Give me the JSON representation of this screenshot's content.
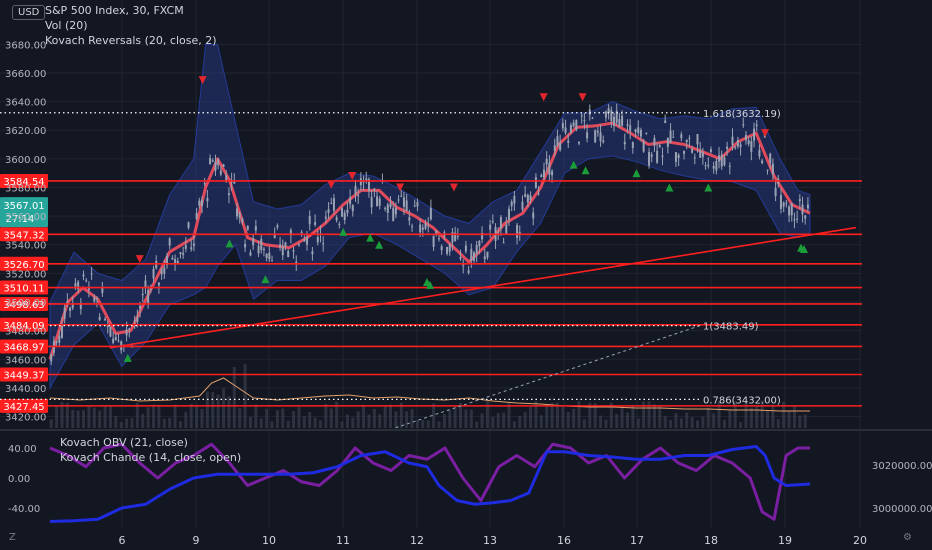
{
  "symbol_line": "S&P 500 Index, 30, FXCM",
  "indicators": {
    "vol": "Vol (20)",
    "reversals": "Kovach Reversals (20, close, 2)",
    "obv": "Kovach OBV (21, close)",
    "chande": "Kovach Chande (14, close, open)"
  },
  "currency": "USD",
  "icons": {
    "z": "Z",
    "gear": "gear-icon"
  },
  "colors": {
    "background": "#131722",
    "grid": "#1f2430",
    "level_line": "#ff1f1f",
    "price_tag": "#ff1f1f",
    "current_price_tag": "#26a69a",
    "candle": "#9aa3b3",
    "bollinger": "#2a3d8f",
    "ma": "#e04a5a",
    "volume_avg": "#e2a06a",
    "obv": "#1e2be0",
    "chande": "#7b1fa2",
    "up_arrow": "#1b9e3a",
    "down_arrow": "#e3262e"
  },
  "chart_data": {
    "type": "candlestick",
    "price_axis_ticks": [
      "3680.00",
      "3660.00",
      "3640.00",
      "3620.00",
      "3600.00",
      "3580.00",
      "3560.00",
      "3540.00",
      "3520.00",
      "3500.00",
      "3480.00",
      "3460.00",
      "3440.00",
      "3420.00"
    ],
    "price_range": [
      3412,
      3690
    ],
    "x_ticks": [
      "6",
      "9",
      "10",
      "11",
      "12",
      "13",
      "16",
      "17",
      "18",
      "19",
      "20"
    ],
    "levels": [
      {
        "price": 3584.54,
        "label": "3584.54"
      },
      {
        "price": 3547.32,
        "label": "3547.32"
      },
      {
        "price": 3526.7,
        "label": "3526.70"
      },
      {
        "price": 3510.11,
        "label": "3510.11"
      },
      {
        "price": 3498.63,
        "label": "3498.63"
      },
      {
        "price": 3484.09,
        "label": "3484.09"
      },
      {
        "price": 3468.97,
        "label": "3468.97"
      },
      {
        "price": 3449.37,
        "label": "3449.37"
      },
      {
        "price": 3427.45,
        "label": "3427.45"
      }
    ],
    "current_price": {
      "price": 3567.01,
      "label": "3567.01",
      "countdown": "27:14"
    },
    "fibonacci": [
      {
        "ratio_label": "1.618(3632.19)",
        "price": 3632.19
      },
      {
        "ratio_label": "1(3483.49)",
        "price": 3483.49
      },
      {
        "ratio_label": "0.786(3432.00)",
        "price": 3432.0
      }
    ],
    "ma_path": [
      [
        0,
        3460
      ],
      [
        0.3,
        3500
      ],
      [
        0.55,
        3510
      ],
      [
        0.8,
        3502
      ],
      [
        1.1,
        3478
      ],
      [
        1.35,
        3480
      ],
      [
        1.7,
        3510
      ],
      [
        2.0,
        3535
      ],
      [
        2.4,
        3545
      ],
      [
        2.6,
        3580
      ],
      [
        2.8,
        3600
      ],
      [
        3.0,
        3585
      ],
      [
        3.3,
        3545
      ],
      [
        3.6,
        3540
      ],
      [
        4.0,
        3538
      ],
      [
        4.3,
        3545
      ],
      [
        4.6,
        3555
      ],
      [
        4.9,
        3568
      ],
      [
        5.2,
        3578
      ],
      [
        5.5,
        3578
      ],
      [
        5.8,
        3566
      ],
      [
        6.1,
        3560
      ],
      [
        6.4,
        3552
      ],
      [
        6.7,
        3540
      ],
      [
        7.0,
        3528
      ],
      [
        7.3,
        3540
      ],
      [
        7.6,
        3555
      ],
      [
        7.9,
        3562
      ],
      [
        8.2,
        3580
      ],
      [
        8.5,
        3610
      ],
      [
        8.8,
        3622
      ],
      [
        9.1,
        3623
      ],
      [
        9.4,
        3625
      ],
      [
        9.7,
        3618
      ],
      [
        10.0,
        3610
      ],
      [
        10.3,
        3612
      ],
      [
        10.6,
        3610
      ],
      [
        10.9,
        3605
      ],
      [
        11.2,
        3600
      ],
      [
        11.5,
        3612
      ],
      [
        11.8,
        3618
      ],
      [
        12.1,
        3588
      ],
      [
        12.4,
        3568
      ],
      [
        12.7,
        3562
      ]
    ],
    "upper_band": [
      [
        0,
        3500
      ],
      [
        0.4,
        3535
      ],
      [
        0.8,
        3520
      ],
      [
        1.2,
        3515
      ],
      [
        1.6,
        3530
      ],
      [
        2.0,
        3575
      ],
      [
        2.4,
        3600
      ],
      [
        2.6,
        3680
      ],
      [
        2.8,
        3680
      ],
      [
        3.1,
        3625
      ],
      [
        3.4,
        3570
      ],
      [
        3.8,
        3565
      ],
      [
        4.2,
        3568
      ],
      [
        4.6,
        3582
      ],
      [
        5.0,
        3590
      ],
      [
        5.4,
        3588
      ],
      [
        5.8,
        3580
      ],
      [
        6.2,
        3570
      ],
      [
        6.6,
        3560
      ],
      [
        7.0,
        3555
      ],
      [
        7.4,
        3570
      ],
      [
        7.8,
        3578
      ],
      [
        8.2,
        3605
      ],
      [
        8.6,
        3632
      ],
      [
        9.0,
        3632
      ],
      [
        9.4,
        3640
      ],
      [
        9.8,
        3633
      ],
      [
        10.2,
        3628
      ],
      [
        10.6,
        3630
      ],
      [
        11.0,
        3628
      ],
      [
        11.4,
        3635
      ],
      [
        11.8,
        3636
      ],
      [
        12.2,
        3600
      ],
      [
        12.5,
        3578
      ],
      [
        12.7,
        3575
      ]
    ],
    "lower_band": [
      [
        0,
        3440
      ],
      [
        0.4,
        3470
      ],
      [
        0.8,
        3485
      ],
      [
        1.2,
        3455
      ],
      [
        1.6,
        3472
      ],
      [
        2.0,
        3498
      ],
      [
        2.4,
        3505
      ],
      [
        2.6,
        3510
      ],
      [
        2.8,
        3525
      ],
      [
        3.1,
        3540
      ],
      [
        3.4,
        3502
      ],
      [
        3.8,
        3515
      ],
      [
        4.2,
        3515
      ],
      [
        4.6,
        3525
      ],
      [
        5.0,
        3545
      ],
      [
        5.4,
        3548
      ],
      [
        5.8,
        3540
      ],
      [
        6.2,
        3530
      ],
      [
        6.6,
        3520
      ],
      [
        7.0,
        3505
      ],
      [
        7.4,
        3510
      ],
      [
        7.8,
        3535
      ],
      [
        8.2,
        3555
      ],
      [
        8.6,
        3590
      ],
      [
        9.0,
        3600
      ],
      [
        9.4,
        3602
      ],
      [
        9.8,
        3598
      ],
      [
        10.2,
        3592
      ],
      [
        10.6,
        3588
      ],
      [
        11.0,
        3585
      ],
      [
        11.4,
        3584
      ],
      [
        11.8,
        3578
      ],
      [
        12.2,
        3548
      ],
      [
        12.5,
        3545
      ],
      [
        12.7,
        3548
      ]
    ],
    "up_arrows": [
      [
        1.3,
        3461
      ],
      [
        3.0,
        3541
      ],
      [
        3.6,
        3516
      ],
      [
        4.9,
        3549
      ],
      [
        5.35,
        3545
      ],
      [
        5.5,
        3540
      ],
      [
        6.3,
        3514
      ],
      [
        6.35,
        3512
      ],
      [
        8.75,
        3596
      ],
      [
        8.95,
        3592
      ],
      [
        9.8,
        3590
      ],
      [
        10.35,
        3580
      ],
      [
        11.0,
        3580
      ],
      [
        12.55,
        3538
      ],
      [
        12.6,
        3537
      ]
    ],
    "down_arrows": [
      [
        1.5,
        3530
      ],
      [
        2.55,
        3655
      ],
      [
        4.7,
        3582
      ],
      [
        5.05,
        3588
      ],
      [
        5.85,
        3580
      ],
      [
        6.75,
        3580
      ],
      [
        8.25,
        3643
      ],
      [
        8.9,
        3643
      ],
      [
        11.95,
        3618
      ]
    ],
    "trendline": {
      "from": [
        1.0,
        3468
      ],
      "to": [
        13.5,
        3552
      ]
    },
    "volume_avg": [
      [
        0,
        0.3
      ],
      [
        0.5,
        0.28
      ],
      [
        1.0,
        0.3
      ],
      [
        1.5,
        0.27
      ],
      [
        2.0,
        0.28
      ],
      [
        2.5,
        0.32
      ],
      [
        2.7,
        0.45
      ],
      [
        2.9,
        0.5
      ],
      [
        3.1,
        0.42
      ],
      [
        3.4,
        0.3
      ],
      [
        3.8,
        0.28
      ],
      [
        4.2,
        0.3
      ],
      [
        4.6,
        0.32
      ],
      [
        5.0,
        0.33
      ],
      [
        5.4,
        0.3
      ],
      [
        5.8,
        0.31
      ],
      [
        6.2,
        0.29
      ],
      [
        6.6,
        0.28
      ],
      [
        7.0,
        0.3
      ],
      [
        7.4,
        0.27
      ],
      [
        7.8,
        0.25
      ],
      [
        8.2,
        0.24
      ],
      [
        8.6,
        0.22
      ],
      [
        9.0,
        0.21
      ],
      [
        9.4,
        0.21
      ],
      [
        9.8,
        0.2
      ],
      [
        10.2,
        0.2
      ],
      [
        10.6,
        0.19
      ],
      [
        11.0,
        0.19
      ],
      [
        11.4,
        0.18
      ],
      [
        11.8,
        0.18
      ],
      [
        12.2,
        0.17
      ],
      [
        12.7,
        0.17
      ]
    ],
    "osc_axis_ticks": [
      "40.00",
      "0.00",
      "-40.00"
    ],
    "obv_axis_ticks": [
      "3020000.00",
      "3000000.00"
    ],
    "chande": [
      [
        0,
        40
      ],
      [
        0.3,
        30
      ],
      [
        0.6,
        15
      ],
      [
        0.9,
        40
      ],
      [
        1.2,
        45
      ],
      [
        1.5,
        20
      ],
      [
        1.8,
        0
      ],
      [
        2.1,
        20
      ],
      [
        2.4,
        30
      ],
      [
        2.7,
        45
      ],
      [
        3.0,
        20
      ],
      [
        3.3,
        -10
      ],
      [
        3.6,
        0
      ],
      [
        3.9,
        10
      ],
      [
        4.2,
        -5
      ],
      [
        4.5,
        -10
      ],
      [
        4.8,
        10
      ],
      [
        5.1,
        40
      ],
      [
        5.4,
        20
      ],
      [
        5.7,
        10
      ],
      [
        6.0,
        30
      ],
      [
        6.3,
        25
      ],
      [
        6.6,
        40
      ],
      [
        6.9,
        0
      ],
      [
        7.2,
        -30
      ],
      [
        7.5,
        15
      ],
      [
        7.8,
        30
      ],
      [
        8.1,
        15
      ],
      [
        8.4,
        45
      ],
      [
        8.7,
        40
      ],
      [
        9.0,
        20
      ],
      [
        9.3,
        30
      ],
      [
        9.6,
        0
      ],
      [
        9.9,
        25
      ],
      [
        10.2,
        40
      ],
      [
        10.5,
        20
      ],
      [
        10.8,
        10
      ],
      [
        11.1,
        30
      ],
      [
        11.4,
        20
      ],
      [
        11.7,
        0
      ],
      [
        11.9,
        -45
      ],
      [
        12.1,
        -55
      ],
      [
        12.3,
        30
      ],
      [
        12.5,
        40
      ],
      [
        12.7,
        40
      ]
    ],
    "obv": [
      [
        0,
        -58
      ],
      [
        0.4,
        -57
      ],
      [
        0.8,
        -55
      ],
      [
        1.2,
        -40
      ],
      [
        1.6,
        -35
      ],
      [
        2.0,
        -15
      ],
      [
        2.4,
        0
      ],
      [
        2.8,
        5
      ],
      [
        3.2,
        5
      ],
      [
        3.6,
        5
      ],
      [
        4.0,
        5
      ],
      [
        4.4,
        7
      ],
      [
        4.8,
        15
      ],
      [
        5.2,
        30
      ],
      [
        5.6,
        35
      ],
      [
        6.0,
        20
      ],
      [
        6.3,
        15
      ],
      [
        6.5,
        -10
      ],
      [
        6.8,
        -30
      ],
      [
        7.1,
        -35
      ],
      [
        7.4,
        -33
      ],
      [
        7.7,
        -30
      ],
      [
        8.0,
        -20
      ],
      [
        8.3,
        35
      ],
      [
        8.6,
        35
      ],
      [
        9.0,
        30
      ],
      [
        9.4,
        28
      ],
      [
        9.8,
        25
      ],
      [
        10.2,
        25
      ],
      [
        10.6,
        30
      ],
      [
        11.0,
        30
      ],
      [
        11.4,
        38
      ],
      [
        11.8,
        42
      ],
      [
        11.95,
        30
      ],
      [
        12.1,
        0
      ],
      [
        12.3,
        -10
      ],
      [
        12.7,
        -8
      ]
    ]
  }
}
